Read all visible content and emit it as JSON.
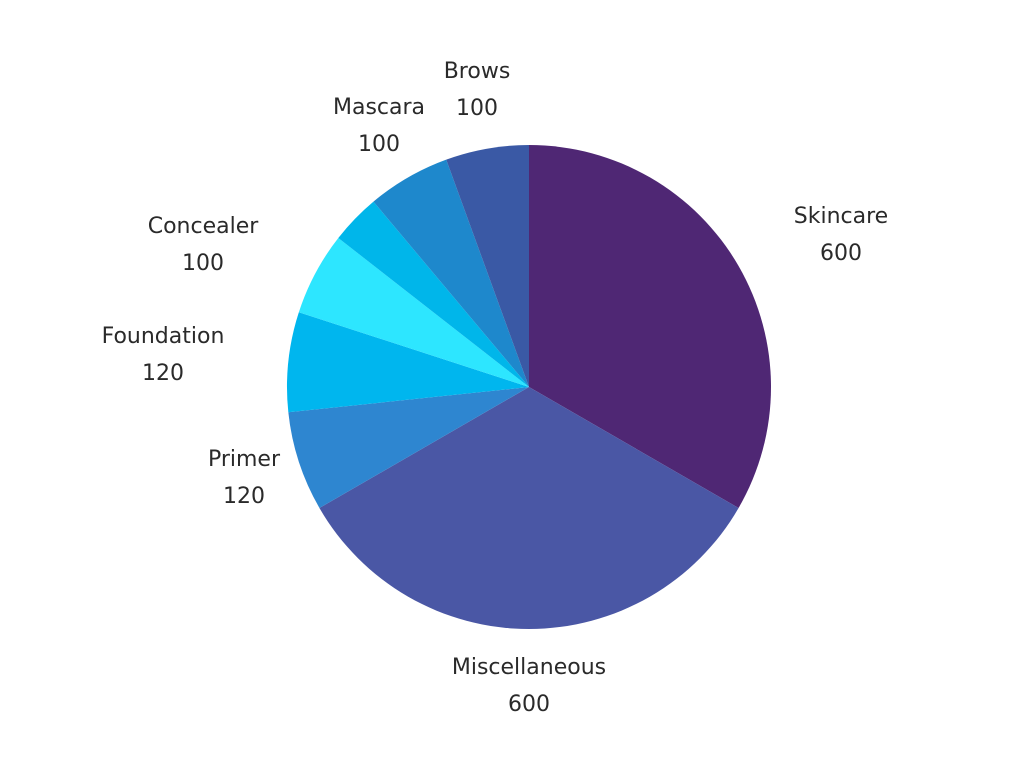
{
  "chart_data": {
    "type": "pie",
    "start": "top",
    "direction": "clockwise",
    "legend": "none",
    "slices": [
      {
        "label": "Skincare",
        "value": 600,
        "value_label": "600",
        "color": "#4F2774"
      },
      {
        "label": "Miscellaneous",
        "value": 600,
        "value_label": "600",
        "color": "#4A57A5"
      },
      {
        "label": "Primer",
        "value": 120,
        "value_label": "120",
        "color": "#2E86D0"
      },
      {
        "label": "Foundation",
        "value": 120,
        "value_label": "120",
        "color": "#00B6EE"
      },
      {
        "label": "Concealer",
        "value": 100,
        "value_label": "100",
        "color": "#2DE6FF"
      },
      {
        "value": 60,
        "color": "#00B6EA"
      },
      {
        "label": "Mascara",
        "value": 100,
        "value_label": "100",
        "color": "#1E88CC"
      },
      {
        "label": "Brows",
        "value": 100,
        "value_label": "100",
        "color": "#3A59A5"
      }
    ]
  }
}
